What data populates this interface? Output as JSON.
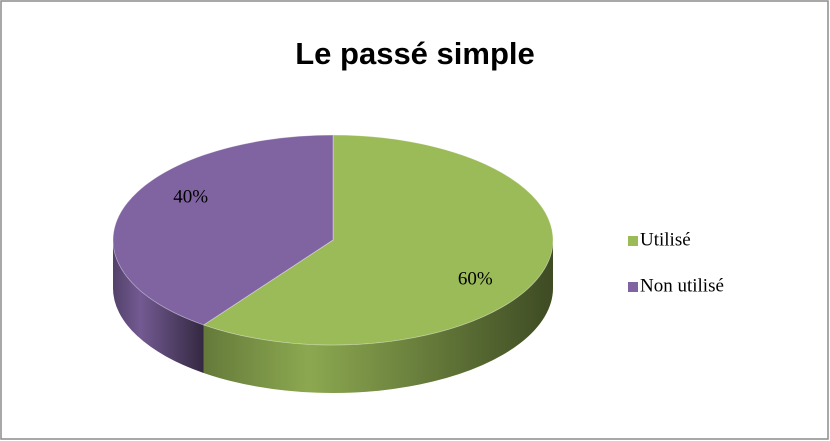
{
  "chart_data": {
    "type": "pie",
    "title": "Le passé simple",
    "categories": [
      "Utilisé",
      "Non utilisé"
    ],
    "values": [
      60,
      40
    ],
    "value_labels": [
      "60%",
      "40%"
    ],
    "colors": [
      "#9bbb59",
      "#8064a2"
    ],
    "legend": "right"
  }
}
